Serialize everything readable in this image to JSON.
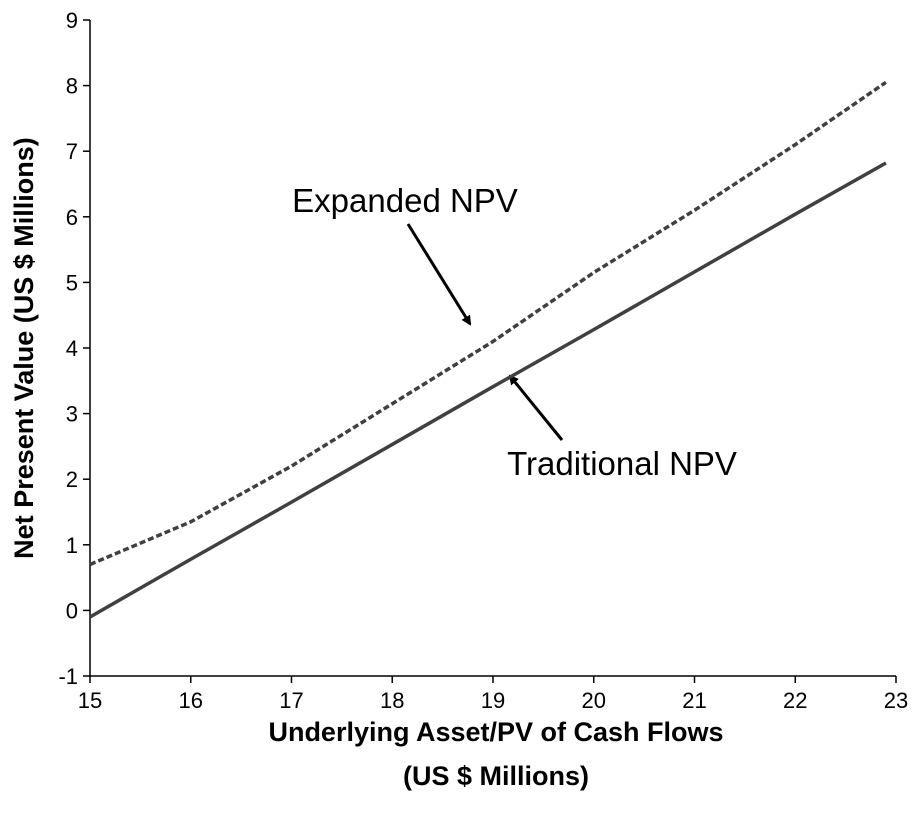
{
  "chart_data": {
    "type": "line",
    "xlabel": [
      "Underlying Asset/PV of Cash Flows",
      "(US $ Millions)"
    ],
    "ylabel": "Net Present Value (US $ Millions)",
    "x": [
      15,
      16,
      17,
      18,
      19,
      20,
      21,
      22,
      22.9
    ],
    "series": [
      {
        "name": "Expanded NPV",
        "color": "#404040",
        "dashed": true,
        "values": [
          0.7,
          1.35,
          2.2,
          3.15,
          4.1,
          5.15,
          6.1,
          7.1,
          8.05
        ]
      },
      {
        "name": "Traditional NPV",
        "color": "#404040",
        "dashed": false,
        "values": [
          -0.1,
          0.78,
          1.65,
          2.53,
          3.41,
          4.28,
          5.16,
          6.04,
          6.82
        ]
      }
    ],
    "xlim": [
      15,
      23
    ],
    "xticks": [
      15,
      16,
      17,
      18,
      19,
      20,
      21,
      22,
      23
    ],
    "ylim": [
      -1,
      9
    ],
    "yticks": [
      -1,
      0,
      1,
      2,
      3,
      4,
      5,
      6,
      7,
      8,
      9
    ],
    "grid": false
  }
}
